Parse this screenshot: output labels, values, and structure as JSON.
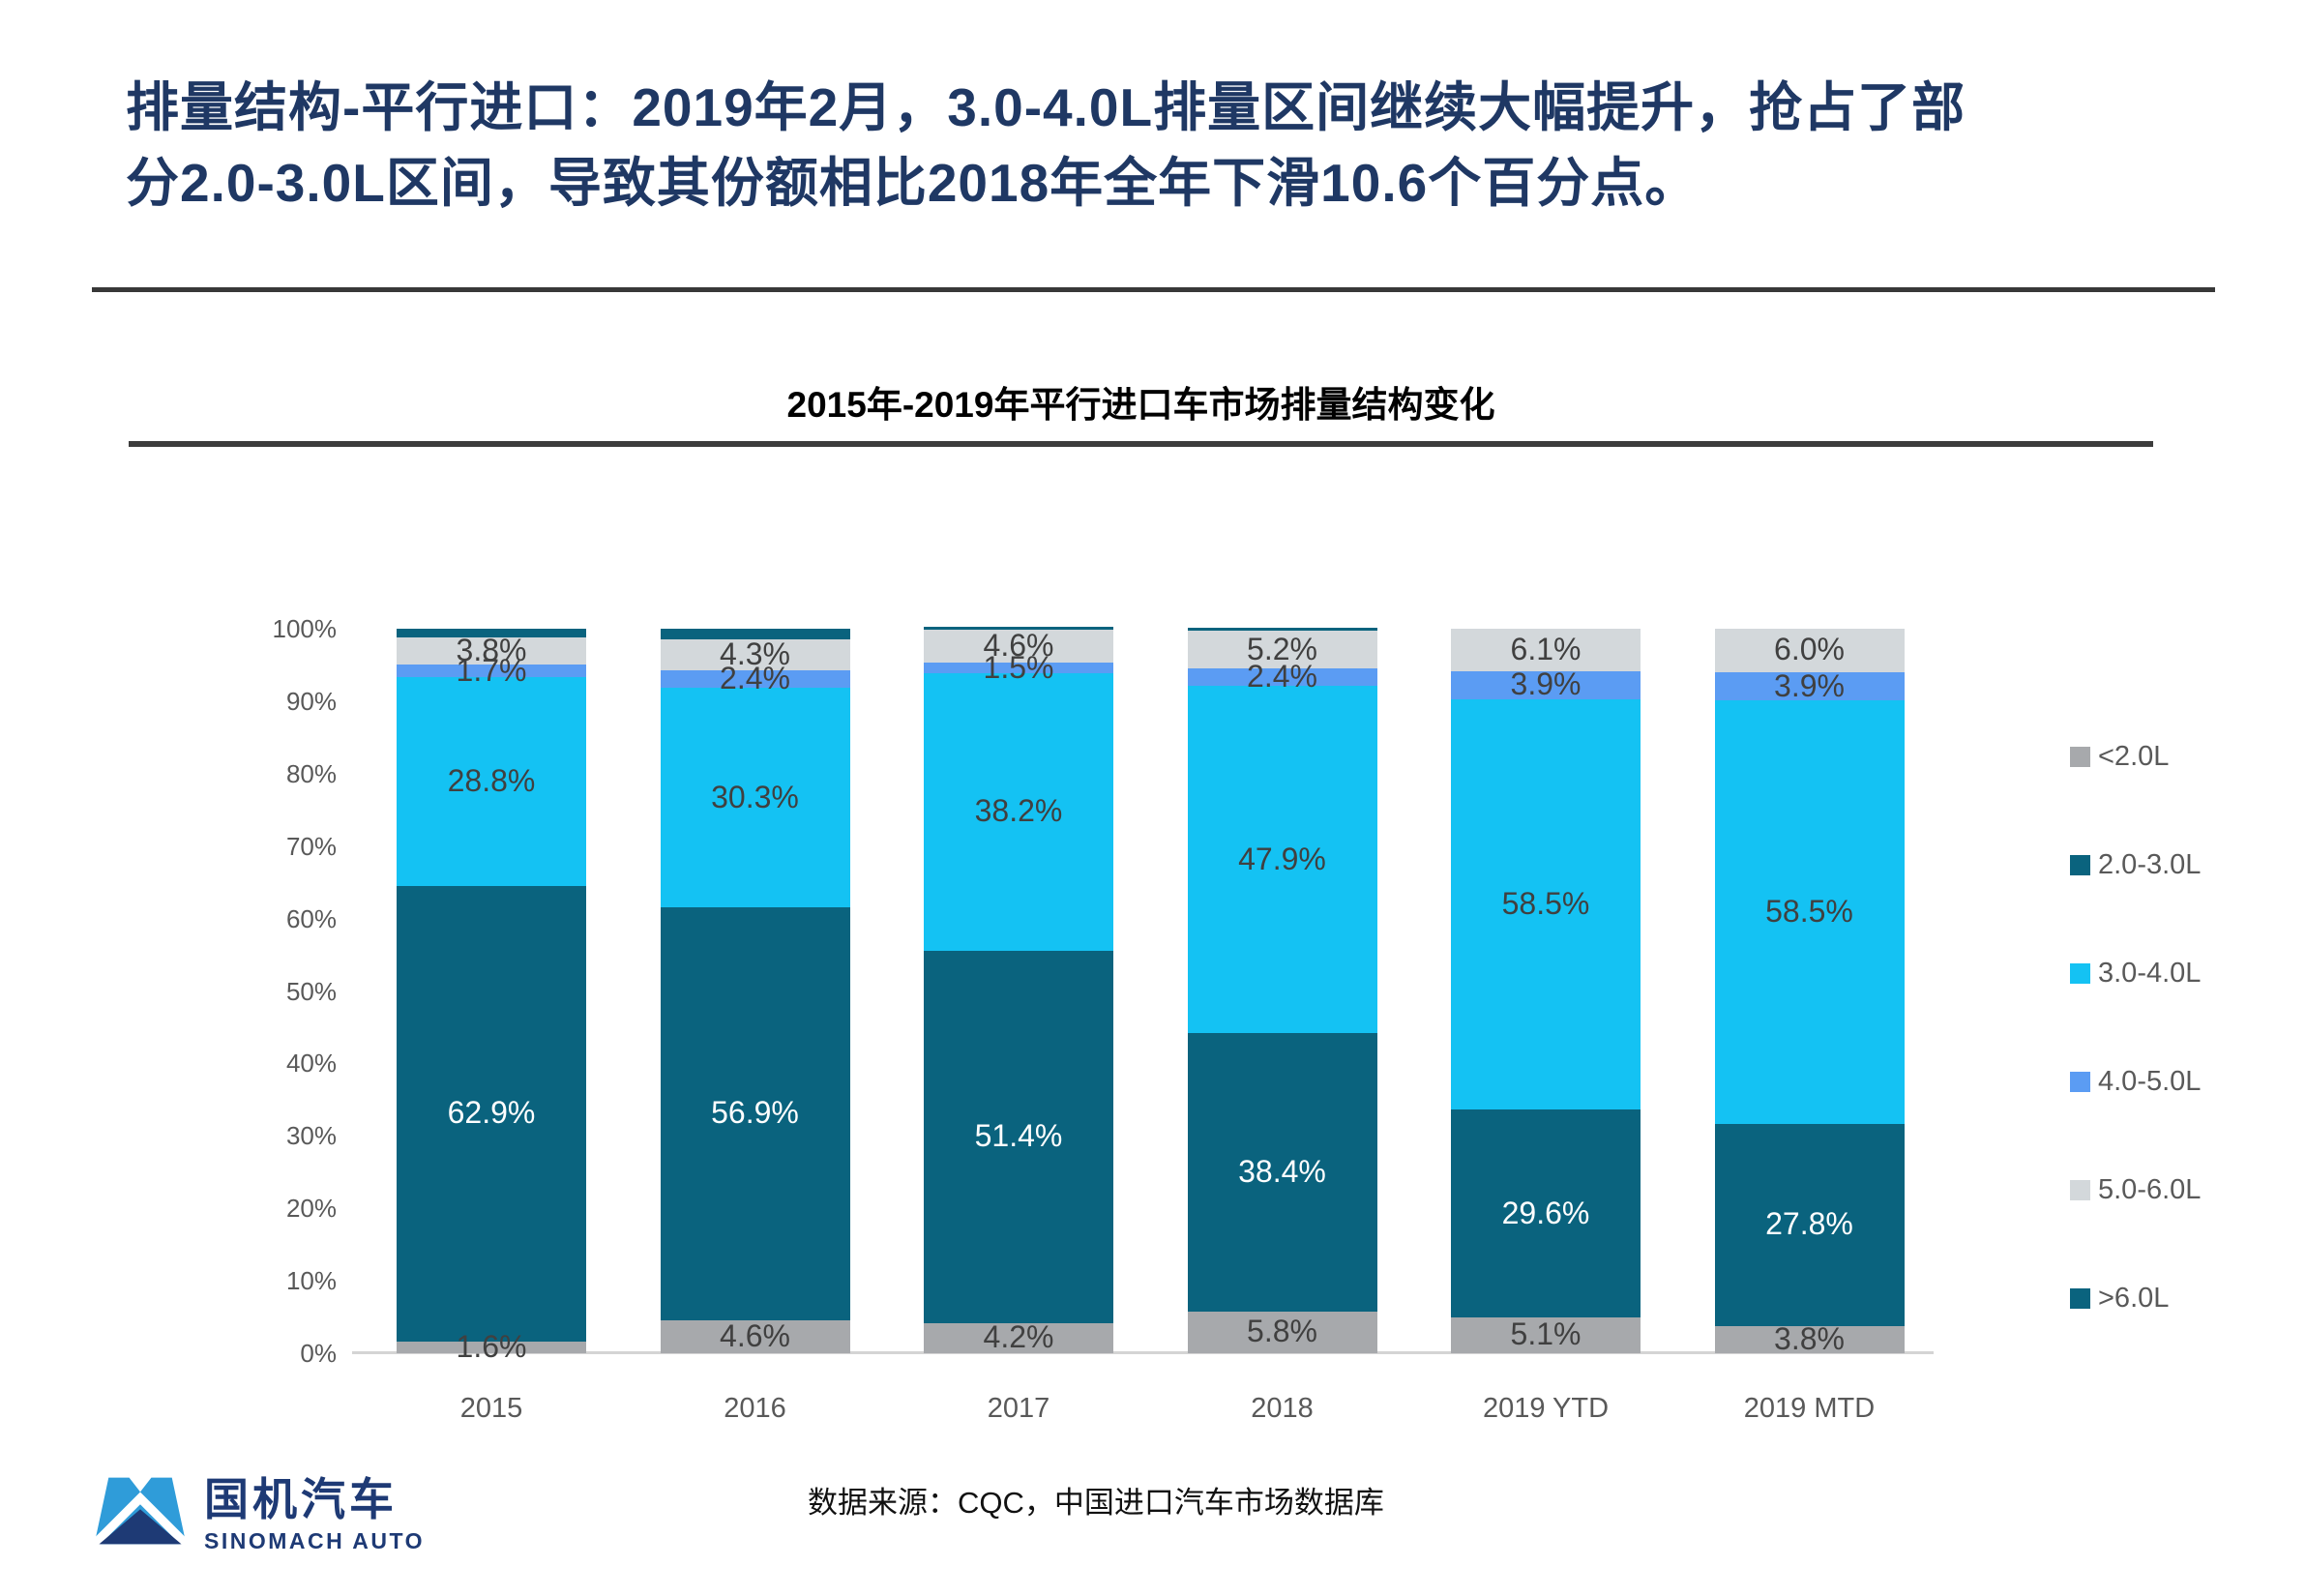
{
  "slide": {
    "title_lines": [
      "排量结构-平行进口：2019年2月，3.0-4.0L排量区间继续大幅提升，抢占了部",
      "分2.0-3.0L区间，导致其份额相比2018年全年下滑10.6个百分点。"
    ],
    "footer": {
      "logo_cn": "国机汽车",
      "logo_en": "SINOMACH AUTO",
      "source": "数据来源：CQC，中国进口汽车市场数据库"
    }
  },
  "chart_data": {
    "type": "bar",
    "stacked": true,
    "percent_stack": true,
    "title": "2015年-2019年平行进口车市场排量结构变化",
    "categories": [
      "2015",
      "2016",
      "2017",
      "2018",
      "2019 YTD",
      "2019 MTD"
    ],
    "xlabel": "",
    "ylabel": "",
    "ylim": [
      0,
      100
    ],
    "grid": false,
    "y_ticks": [
      "0%",
      "10%",
      "20%",
      "30%",
      "40%",
      "50%",
      "60%",
      "70%",
      "80%",
      "90%",
      "100%"
    ],
    "legend_position": "right",
    "series": [
      {
        "name": "<2.0L",
        "color": "#a7a9ac",
        "label_color": "#404040",
        "show_labels": true,
        "values": [
          1.6,
          4.6,
          4.2,
          5.8,
          5.1,
          3.8
        ]
      },
      {
        "name": "2.0-3.0L",
        "color": "#0a637e",
        "label_color": "#ffffff",
        "show_labels": true,
        "values": [
          62.9,
          56.9,
          51.4,
          38.4,
          29.6,
          27.8
        ]
      },
      {
        "name": "3.0-4.0L",
        "color": "#14c2f3",
        "label_color": "#404040",
        "show_labels": true,
        "values": [
          28.8,
          30.3,
          38.2,
          47.9,
          58.5,
          58.5
        ]
      },
      {
        "name": "4.0-5.0L",
        "color": "#5b9cf3",
        "label_color": "#404040",
        "show_labels": true,
        "values": [
          1.7,
          2.4,
          1.5,
          2.4,
          3.9,
          3.9
        ]
      },
      {
        "name": "5.0-6.0L",
        "color": "#d3d8db",
        "label_color": "#404040",
        "show_labels": true,
        "values": [
          3.8,
          4.3,
          4.6,
          5.2,
          6.1,
          6.0
        ]
      },
      {
        "name": ">6.0L",
        "color": "#0a637e",
        "label_color": "#ffffff",
        "show_labels": false,
        "values": [
          1.2,
          1.5,
          0.1,
          0.3,
          0,
          0
        ]
      }
    ]
  }
}
